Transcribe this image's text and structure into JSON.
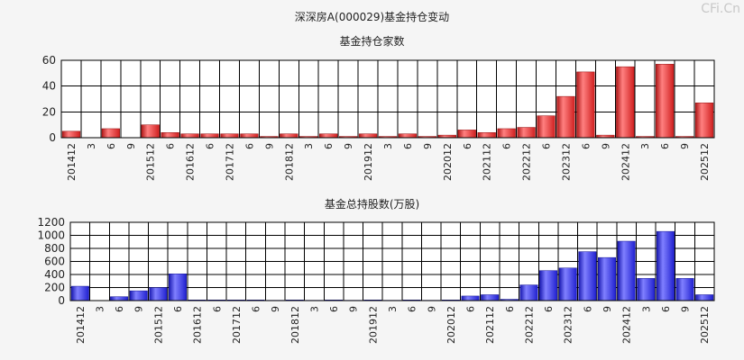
{
  "title": "深深房A(000029)基金持仓变动",
  "watermark": "CFi.Cn",
  "chart_data": [
    {
      "type": "bar",
      "title": "基金持仓家数",
      "categories": [
        "201412",
        "3",
        "6",
        "9",
        "201512",
        "6",
        "201612",
        "6",
        "201712",
        "6",
        "9",
        "201812",
        "3",
        "6",
        "9",
        "201912",
        "3",
        "6",
        "9",
        "202012",
        "6",
        "202112",
        "6",
        "202212",
        "6",
        "202312",
        "6",
        "9",
        "202412",
        "3",
        "6",
        "9",
        "202512"
      ],
      "values": [
        5,
        0,
        7,
        0,
        10,
        4,
        3,
        3,
        3,
        3,
        1,
        3,
        1,
        3,
        1,
        3,
        1,
        3,
        1,
        2,
        6,
        4,
        7,
        8,
        17,
        32,
        51,
        2,
        55,
        1,
        57,
        1,
        27
      ],
      "ylim": [
        0,
        60
      ],
      "yticks": [
        0,
        20,
        40,
        60
      ],
      "bar_color": "#e03030"
    },
    {
      "type": "bar",
      "title": "基金总持股数(万股)",
      "categories": [
        "201412",
        "3",
        "6",
        "9",
        "201512",
        "6",
        "201612",
        "6",
        "201712",
        "6",
        "9",
        "201812",
        "3",
        "6",
        "9",
        "201912",
        "3",
        "6",
        "9",
        "202012",
        "6",
        "202112",
        "6",
        "202212",
        "6",
        "202312",
        "6",
        "9",
        "202412",
        "3",
        "6",
        "9",
        "202512"
      ],
      "values": [
        220,
        0,
        60,
        150,
        200,
        410,
        10,
        10,
        10,
        10,
        5,
        10,
        5,
        10,
        5,
        10,
        5,
        10,
        5,
        10,
        70,
        90,
        20,
        240,
        460,
        500,
        750,
        660,
        910,
        340,
        1060,
        340,
        90
      ],
      "ylim": [
        0,
        1200
      ],
      "yticks": [
        0,
        200,
        400,
        600,
        800,
        1000,
        1200
      ],
      "bar_color": "#3030e0"
    }
  ]
}
